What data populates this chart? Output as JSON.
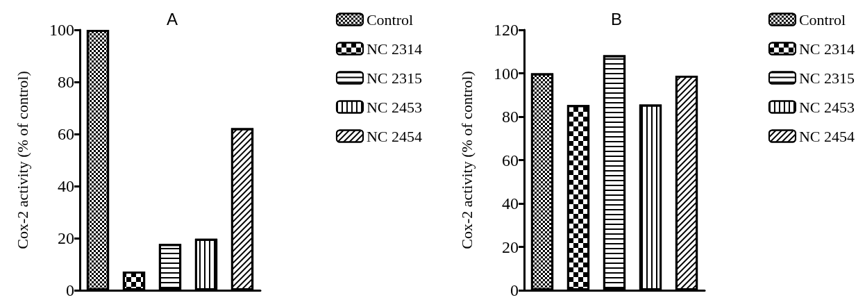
{
  "chart_data": [
    {
      "type": "bar",
      "title": "A",
      "ylabel": "Cox-2 activity (% of control)",
      "categories": [
        null,
        null,
        null,
        null,
        null
      ],
      "ylim": [
        0,
        100
      ],
      "yticks": [
        0,
        20,
        40,
        60,
        80,
        100
      ],
      "legend": "right",
      "grid": false,
      "series": [
        {
          "name": "Control",
          "values": [
            100,
            null,
            null,
            null,
            null
          ]
        },
        {
          "name": "NC 2314",
          "values": [
            null,
            7.2,
            null,
            null,
            null
          ]
        },
        {
          "name": "NC 2315",
          "values": [
            null,
            null,
            17.8,
            null,
            null
          ]
        },
        {
          "name": "NC 2453",
          "values": [
            null,
            null,
            null,
            19.8,
            null
          ]
        },
        {
          "name": "NC 2454",
          "values": [
            null,
            null,
            null,
            null,
            62.3
          ]
        }
      ]
    },
    {
      "type": "bar",
      "title": "B",
      "ylabel": "Cox-2 activity (% of control)",
      "categories": [
        null,
        null,
        null,
        null,
        null
      ],
      "ylim": [
        0,
        120
      ],
      "yticks": [
        0,
        20,
        40,
        60,
        80,
        100,
        120
      ],
      "legend": "right",
      "grid": false,
      "series": [
        {
          "name": "Control",
          "values": [
            100,
            null,
            null,
            null,
            null
          ]
        },
        {
          "name": "NC 2314",
          "values": [
            null,
            85.4,
            null,
            null,
            null
          ]
        },
        {
          "name": "NC 2315",
          "values": [
            null,
            null,
            108.3,
            null,
            null
          ]
        },
        {
          "name": "NC 2453",
          "values": [
            null,
            null,
            null,
            85.6,
            null
          ]
        },
        {
          "name": "NC 2454",
          "values": [
            null,
            null,
            null,
            null,
            98.9
          ]
        }
      ]
    }
  ]
}
